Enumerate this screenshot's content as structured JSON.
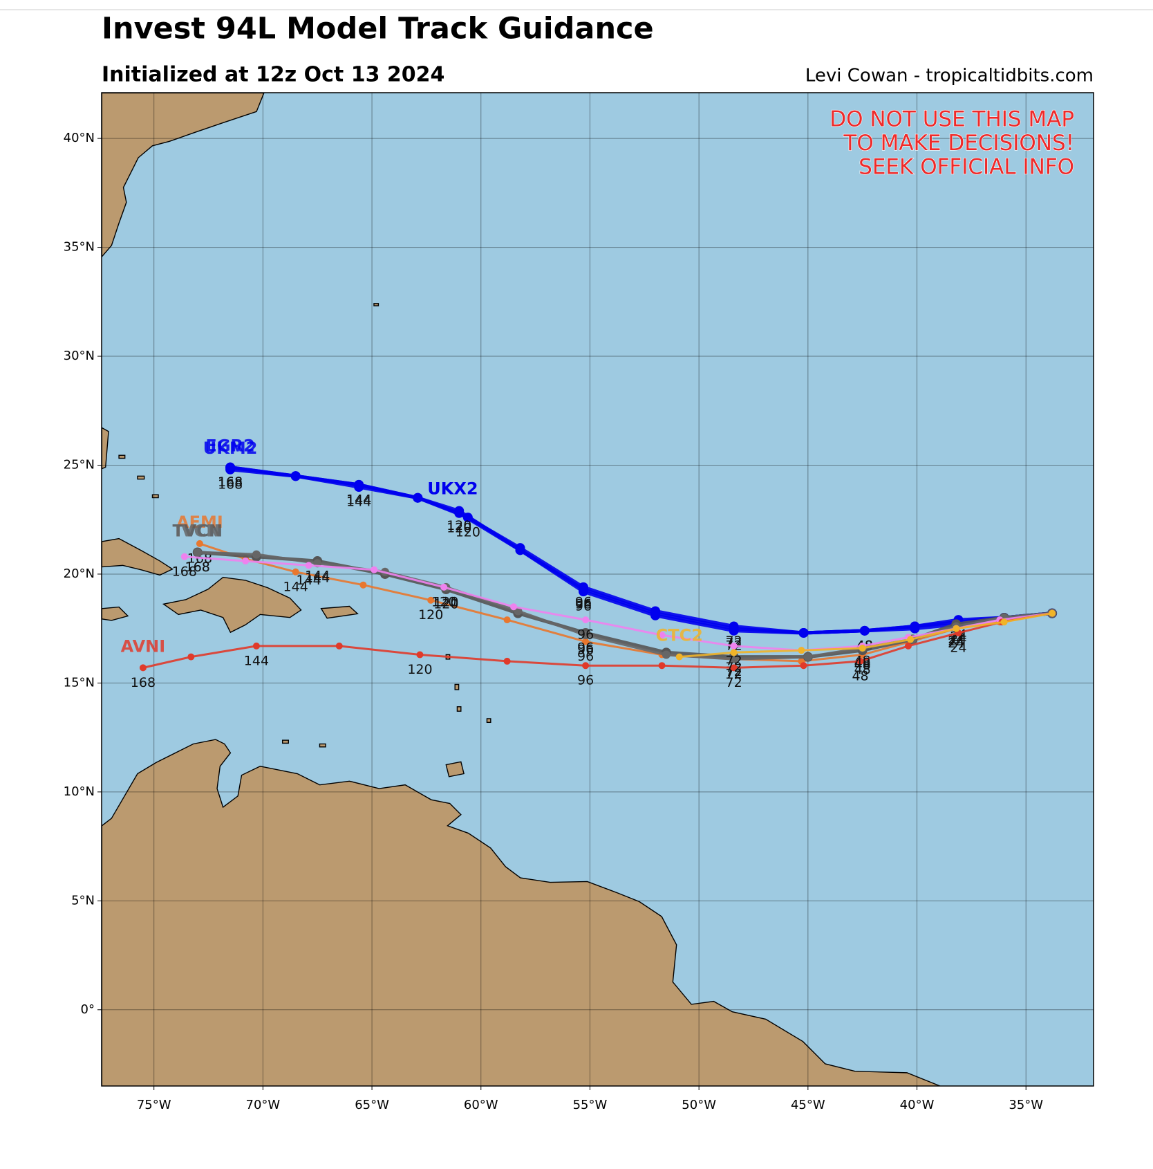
{
  "chart_data": {
    "type": "track-map",
    "title": "Invest 94L Model Track Guidance",
    "subtitle": "Initialized at 12z Oct 13 2024",
    "credit": "Levi Cowan - tropicaltidbits.com",
    "annotation": [
      "DO NOT USE THIS MAP",
      "TO MAKE DECISIONS!",
      "SEEK OFFICIAL INFO"
    ],
    "xlim": [
      -77.4,
      -31.9
    ],
    "ylim": [
      -3.5,
      42.1
    ],
    "xticks": [
      {
        "value": -75,
        "label": "75°W"
      },
      {
        "value": -70,
        "label": "70°W"
      },
      {
        "value": -65,
        "label": "65°W"
      },
      {
        "value": -60,
        "label": "60°W"
      },
      {
        "value": -55,
        "label": "55°W"
      },
      {
        "value": -50,
        "label": "50°W"
      },
      {
        "value": -45,
        "label": "45°W"
      },
      {
        "value": -40,
        "label": "40°W"
      },
      {
        "value": -35,
        "label": "35°W"
      }
    ],
    "yticks": [
      {
        "value": 0,
        "label": "0°"
      },
      {
        "value": 5,
        "label": "5°N"
      },
      {
        "value": 10,
        "label": "10°N"
      },
      {
        "value": 15,
        "label": "15°N"
      },
      {
        "value": 20,
        "label": "20°N"
      },
      {
        "value": 25,
        "label": "25°N"
      },
      {
        "value": 30,
        "label": "30°N"
      },
      {
        "value": 35,
        "label": "35°N"
      },
      {
        "value": 40,
        "label": "40°N"
      }
    ],
    "grid": true,
    "series": [
      {
        "name": "UKX2",
        "color": "#0000ee",
        "lon": [
          -33.8,
          -36.0,
          -38.1,
          -40.1,
          -42.4,
          -45.2,
          -48.4,
          -52.0,
          -55.3,
          -58.2,
          -60.6,
          -62.9,
          -65.6,
          -68.5,
          -71.5
        ],
        "lat": [
          18.2,
          18.0,
          17.8,
          17.6,
          17.4,
          17.3,
          17.6,
          18.3,
          19.4,
          21.2,
          22.6,
          23.5,
          24.1,
          24.5,
          24.9
        ],
        "hours": [
          null,
          null,
          24,
          null,
          48,
          null,
          72,
          null,
          96,
          null,
          120,
          null,
          144,
          null,
          168
        ]
      },
      {
        "name": "UKM2",
        "color": "#0000ee",
        "lon": [
          -33.8,
          -36.0,
          -38.1,
          -40.1,
          -42.4,
          -45.2,
          -48.4,
          -52.0,
          -55.3,
          -58.2,
          -61.0,
          -62.9,
          -65.6,
          -68.5,
          -71.5
        ],
        "lat": [
          18.2,
          18.0,
          17.9,
          17.6,
          17.4,
          17.3,
          17.5,
          18.2,
          19.3,
          21.1,
          22.9,
          23.5,
          24.1,
          24.5,
          24.8
        ],
        "hours": [
          null,
          null,
          24,
          null,
          48,
          null,
          72,
          null,
          96,
          null,
          120,
          null,
          144,
          null,
          168
        ]
      },
      {
        "name": "EGR2",
        "color": "#0000ee",
        "lon": [
          -33.8,
          -36.0,
          -38.1,
          -40.1,
          -42.4,
          -45.2,
          -48.4,
          -52.0,
          -55.3,
          -58.2,
          -61.0,
          -62.9,
          -65.6,
          -68.5,
          -71.5
        ],
        "lat": [
          18.2,
          18.0,
          17.7,
          17.5,
          17.4,
          17.3,
          17.4,
          18.1,
          19.2,
          21.1,
          22.8,
          23.5,
          24.0,
          24.5,
          24.9
        ],
        "hours": [
          null,
          null,
          24,
          null,
          48,
          null,
          72,
          null,
          96,
          null,
          120,
          null,
          144,
          null,
          168
        ]
      },
      {
        "name": "AEMI",
        "color": "#e8772e",
        "lon": [
          -33.8,
          -36.2,
          -38.2,
          -40.3,
          -42.5,
          -45.3,
          -48.4,
          -51.7,
          -55.2,
          -58.8,
          -62.3,
          -65.4,
          -68.5,
          -70.8,
          -72.9
        ],
        "lat": [
          18.2,
          17.8,
          17.5,
          16.9,
          16.3,
          16.0,
          16.1,
          16.3,
          16.9,
          17.9,
          18.8,
          19.5,
          20.1,
          20.7,
          21.4
        ],
        "hours": [
          null,
          null,
          24,
          null,
          48,
          null,
          72,
          null,
          96,
          null,
          120,
          null,
          144,
          null,
          168
        ]
      },
      {
        "name": "TVCN",
        "color": "#555555",
        "lon": [
          -33.8,
          -36.0,
          -38.2,
          -40.2,
          -42.5,
          -45.0,
          -48.4,
          -51.5,
          -55.2,
          -58.3,
          -61.6,
          -64.4,
          -67.5,
          -70.3,
          -73.0
        ],
        "lat": [
          18.2,
          18.0,
          17.7,
          17.0,
          16.5,
          16.2,
          16.2,
          16.4,
          17.3,
          18.2,
          19.3,
          20.0,
          20.6,
          20.8,
          21.0
        ],
        "hours": [
          null,
          null,
          24,
          null,
          48,
          null,
          72,
          null,
          96,
          null,
          120,
          null,
          144,
          null,
          168
        ]
      },
      {
        "name": "IVCN",
        "color": "#666666",
        "lon": [
          -33.8,
          -36.0,
          -38.2,
          -40.2,
          -42.5,
          -45.0,
          -48.4,
          -51.5,
          -55.2,
          -58.3,
          -61.6,
          -64.4,
          -67.5,
          -70.3,
          -73.0
        ],
        "lat": [
          18.2,
          18.0,
          17.6,
          17.0,
          16.6,
          16.2,
          16.1,
          16.3,
          17.2,
          18.3,
          19.4,
          20.1,
          20.5,
          20.9,
          21.0
        ],
        "hours": [
          null,
          null,
          24,
          null,
          48,
          null,
          72,
          null,
          96,
          null,
          120,
          null,
          144,
          null,
          168
        ]
      },
      {
        "color": "#ee82ee",
        "lon": [
          -33.8,
          -36.2,
          -38.2,
          -40.4,
          -42.5,
          -45.3,
          -48.4,
          -51.7,
          -55.2,
          -58.5,
          -61.7,
          -64.9,
          -67.9,
          -70.8,
          -73.6
        ],
        "lat": [
          18.2,
          17.9,
          17.5,
          17.1,
          16.7,
          16.5,
          16.7,
          17.2,
          17.9,
          18.5,
          19.4,
          20.2,
          20.4,
          20.6,
          20.8
        ],
        "hours": [
          null,
          null,
          24,
          null,
          48,
          null,
          72,
          null,
          96,
          null,
          120,
          null,
          144,
          null,
          168
        ]
      },
      {
        "name": "AVNI",
        "color": "#e03a2a",
        "lon": [
          -33.8,
          -36.1,
          -38.1,
          -40.4,
          -42.6,
          -45.2,
          -48.4,
          -51.7,
          -55.2,
          -58.8,
          -62.8,
          -66.5,
          -70.3,
          -73.3,
          -75.5
        ],
        "lat": [
          18.2,
          17.8,
          17.3,
          16.7,
          16.0,
          15.8,
          15.7,
          15.8,
          15.8,
          16.0,
          16.3,
          16.7,
          16.7,
          16.2,
          15.7
        ],
        "hours": [
          null,
          null,
          24,
          null,
          48,
          null,
          72,
          null,
          96,
          null,
          120,
          null,
          144,
          null,
          168
        ]
      },
      {
        "name": "CTC2",
        "color": "#f0b429",
        "lon": [
          -33.8,
          -36.0,
          -38.2,
          -40.3,
          -42.5,
          -45.3,
          -48.4,
          -50.9
        ],
        "lat": [
          18.2,
          17.8,
          17.5,
          17.0,
          16.6,
          16.5,
          16.4,
          16.2
        ],
        "hours": [
          null,
          null,
          24,
          null,
          48,
          null,
          72,
          null
        ]
      }
    ]
  }
}
